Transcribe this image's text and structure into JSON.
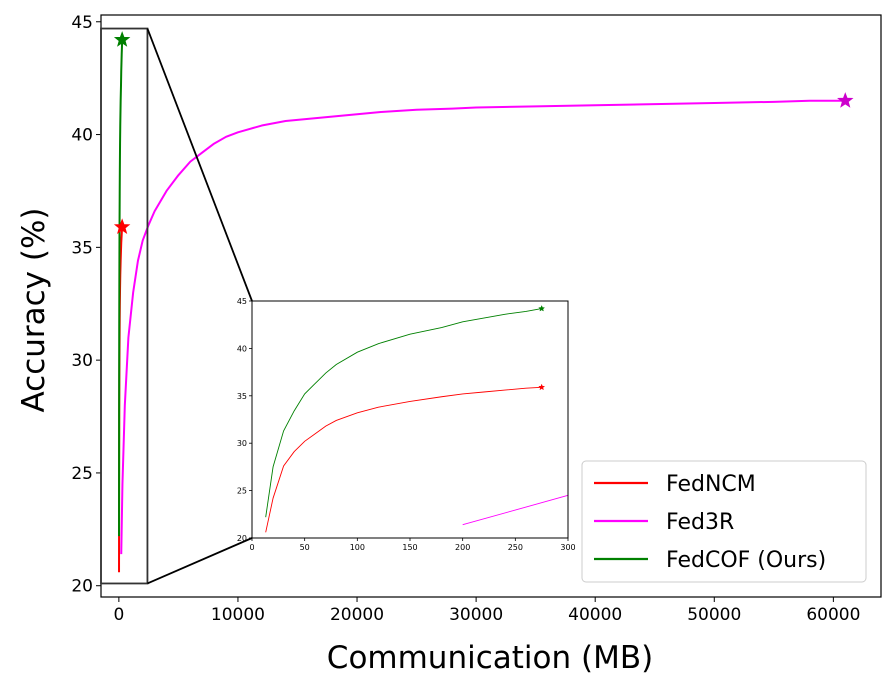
{
  "chart_data": {
    "type": "line",
    "title": "",
    "xlabel": "Communication (MB)",
    "ylabel": "Accuracy (%)",
    "xlim": [
      -1500,
      64000
    ],
    "ylim": [
      19.5,
      45.3
    ],
    "xticks": [
      0,
      10000,
      20000,
      30000,
      40000,
      50000,
      60000
    ],
    "yticks": [
      20,
      25,
      30,
      35,
      40,
      45
    ],
    "legend": {
      "placement": "lower-right"
    },
    "series": [
      {
        "name": "FedNCM",
        "color": "#ff0000",
        "x": [
          13,
          20,
          30,
          40,
          50,
          60,
          70,
          80,
          100,
          120,
          150,
          180,
          200,
          220,
          240,
          260,
          275
        ],
        "y": [
          20.6,
          24.2,
          27.6,
          29.1,
          30.2,
          31.0,
          31.8,
          32.4,
          33.2,
          33.8,
          34.4,
          34.9,
          35.2,
          35.4,
          35.6,
          35.8,
          35.9
        ]
      },
      {
        "name": "Fed3R",
        "color": "#ff00ff",
        "x": [
          200,
          300,
          500,
          800,
          1200,
          1600,
          2000,
          2500,
          3000,
          4000,
          5000,
          6000,
          7000,
          8000,
          9000,
          10000,
          12000,
          14000,
          16000,
          18000,
          20000,
          22000,
          25000,
          28000,
          30000,
          35000,
          40000,
          45000,
          50000,
          55000,
          58000,
          61000
        ],
        "y": [
          21.4,
          24.5,
          28.0,
          31.0,
          33.0,
          34.4,
          35.3,
          36.0,
          36.6,
          37.5,
          38.2,
          38.8,
          39.2,
          39.6,
          39.9,
          40.1,
          40.4,
          40.6,
          40.7,
          40.8,
          40.9,
          41.0,
          41.1,
          41.15,
          41.2,
          41.25,
          41.3,
          41.35,
          41.4,
          41.45,
          41.5,
          41.5
        ]
      },
      {
        "name": "FedCOF (Ours)",
        "color": "#008000",
        "x": [
          13,
          20,
          30,
          40,
          50,
          60,
          70,
          80,
          100,
          120,
          150,
          180,
          200,
          220,
          240,
          260,
          275
        ],
        "y": [
          22.2,
          27.5,
          31.3,
          33.4,
          35.2,
          36.3,
          37.4,
          38.3,
          39.6,
          40.5,
          41.5,
          42.2,
          42.8,
          43.2,
          43.6,
          43.9,
          44.2
        ]
      }
    ],
    "end_markers": [
      {
        "series": "FedNCM",
        "marker": "star",
        "x": 275,
        "y": 35.9,
        "color": "#ff0000"
      },
      {
        "series": "Fed3R",
        "marker": "star",
        "x": 61000,
        "y": 41.5,
        "color": "#cc00cc"
      },
      {
        "series": "FedCOF (Ours)",
        "marker": "star",
        "x": 275,
        "y": 44.2,
        "color": "#008000"
      }
    ],
    "inset": {
      "xlim": [
        0,
        300
      ],
      "ylim": [
        20,
        45
      ],
      "xticks": [
        0,
        50,
        100,
        150,
        200,
        250,
        300
      ],
      "yticks": [
        20,
        25,
        30,
        35,
        40,
        45
      ],
      "zoom_region": {
        "xlim": [
          -1500,
          2400
        ],
        "ylim": [
          20.1,
          44.7
        ]
      }
    }
  }
}
